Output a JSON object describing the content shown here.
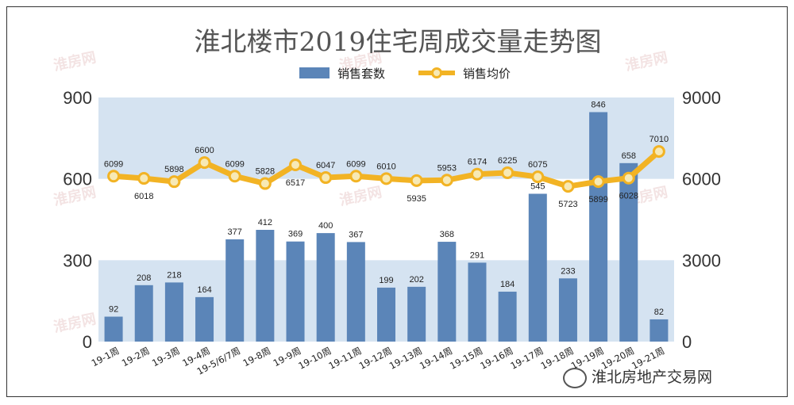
{
  "chart_data": {
    "type": "bar+line",
    "title": "淮北楼市2019住宅周成交量走势图",
    "categories": [
      "19-1周",
      "19-2周",
      "19-3周",
      "19-4周",
      "19-5/6/7周",
      "19-8周",
      "19-9周",
      "19-10周",
      "19-11周",
      "19-12周",
      "19-13周",
      "19-14周",
      "19-15周",
      "19-16周",
      "19-17周",
      "19-18周",
      "19-19周",
      "19-20周",
      "19-21周"
    ],
    "series": [
      {
        "name": "销售套数",
        "type": "bar",
        "axis": "left",
        "values": [
          92,
          208,
          218,
          164,
          377,
          412,
          369,
          400,
          367,
          199,
          202,
          368,
          291,
          184,
          545,
          233,
          846,
          658,
          82
        ]
      },
      {
        "name": "销售均价",
        "type": "line",
        "axis": "right",
        "values": [
          6099,
          6018,
          5898,
          6600,
          6099,
          5828,
          6517,
          6047,
          6099,
          6010,
          5935,
          5953,
          6174,
          6225,
          6075,
          5723,
          5899,
          6028,
          7010
        ]
      }
    ],
    "left_axis": {
      "ylim": [
        0,
        900
      ],
      "ticks": [
        "0",
        "300",
        "600",
        "900"
      ]
    },
    "right_axis": {
      "ylim": [
        0,
        9000
      ],
      "ticks": [
        "0",
        "3000",
        "6000",
        "9000"
      ]
    },
    "legend_placement": "top-center",
    "colors": {
      "bar": "#5b85b8",
      "line": "#f2b324",
      "marker_fill": "#f7e9b5",
      "band": "#d5e3f1"
    }
  },
  "watermark": {
    "text": "淮房网",
    "sub": "hb.ahhouse.com"
  },
  "brand": {
    "text": "淮北房地产交易网"
  }
}
